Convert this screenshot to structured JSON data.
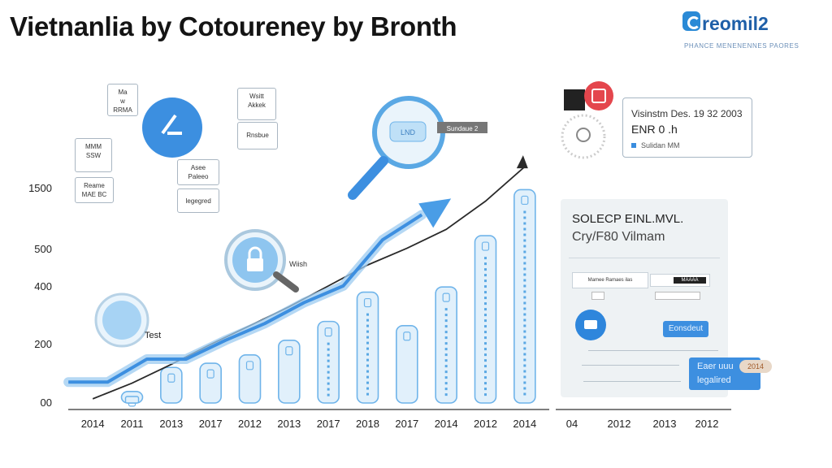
{
  "header": {
    "title": "Vietnanlia by Cotoureney by Bronth",
    "brand_name": "reomil2",
    "brand_tagline": "PHANCE MENENENNES PAORES"
  },
  "chart_data": {
    "type": "bar",
    "title": "Vietnanlia by Cotoureney by Bronth",
    "xlabel": "",
    "ylabel": "",
    "y_tick_labels": [
      "00",
      "200",
      "400",
      "500",
      "1500"
    ],
    "categories": [
      "2014",
      "2011",
      "2013",
      "2017",
      "2012",
      "2013",
      "2017",
      "2018",
      "2017",
      "2014",
      "2012",
      "2014"
    ],
    "values": [
      0,
      55,
      170,
      190,
      230,
      300,
      390,
      530,
      370,
      555,
      800,
      1020
    ],
    "trend_line": [
      20,
      95,
      185,
      280,
      370,
      460,
      560,
      660,
      740,
      830,
      965,
      1130
    ],
    "series_line": [
      100,
      100,
      210,
      210,
      300,
      380,
      480,
      560,
      780,
      900,
      1000,
      1090
    ],
    "secondary_axis_labels": [
      "04",
      "2012",
      "2013",
      "2012"
    ],
    "grid": false
  },
  "annotations": {
    "box_a": "Ma\nw\nRRMA",
    "box_b": "MMM\nSSW",
    "box_c": "Reame\nMAE BC",
    "box_d": "Asee\nPaleeo",
    "box_e": "Iegegred",
    "box_f": "Wsitt\nAkkek",
    "box_g": "Rnsbue",
    "bubble_label": "LND",
    "callout_tag": "Sundaue 2",
    "lock_label": "Wiish",
    "test_label": "Test"
  },
  "right_card": {
    "line1": "Visinstm Des. 19 32 2003",
    "line2": "ENR 0 .h",
    "line3": "Sulidan MM"
  },
  "panel": {
    "heading": "SOLECP EINL.MVL.",
    "subheading": "Cry/F80 Vilmam",
    "row_label": "Mamee Ramaes ilas",
    "row_chip": "MAAAA",
    "button1": "Eonsdeut",
    "button2_line1": "Eaer uuu",
    "button2_line2": "legalired",
    "button2_badge": "2014"
  },
  "colors": {
    "accent": "#3d8fe0",
    "bar_fill": "#e1f0fb",
    "bar_stroke": "#6fb4ea",
    "line_dark": "#2a2a2a",
    "red_badge": "#e4464d"
  }
}
